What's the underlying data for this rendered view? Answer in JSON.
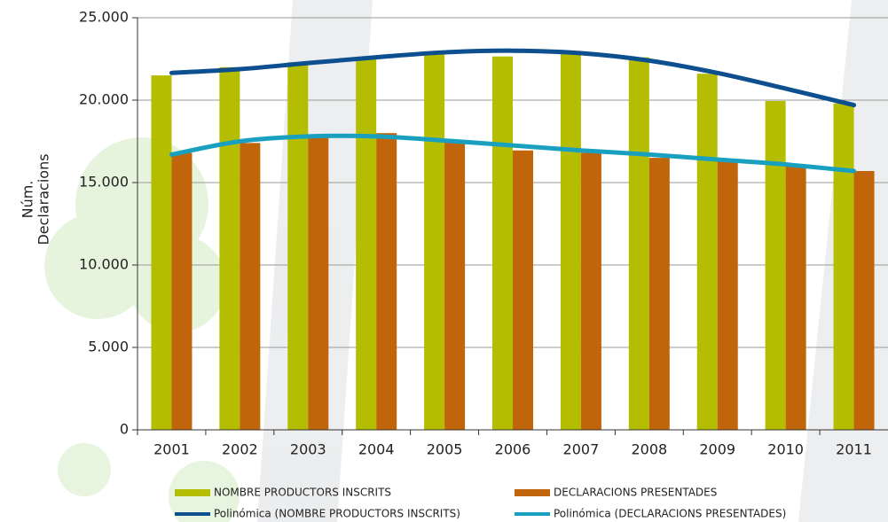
{
  "chart_data": {
    "type": "bar",
    "ylabel": [
      "Núm.",
      "Declaracions"
    ],
    "categories": [
      "2001",
      "2002",
      "2003",
      "2004",
      "2005",
      "2006",
      "2007",
      "2008",
      "2009",
      "2010",
      "2011"
    ],
    "series": [
      {
        "name": "NOMBRE PRODUCTORS INSCRITS",
        "kind": "bar",
        "color": "#b5bd00",
        "values": [
          21500,
          22000,
          22300,
          22600,
          22800,
          22650,
          22900,
          22600,
          21600,
          19950,
          19800
        ]
      },
      {
        "name": "DECLARACIONS PRESENTADES",
        "kind": "bar",
        "color": "#c0650a",
        "values": [
          16800,
          17400,
          17800,
          18000,
          17500,
          16950,
          16800,
          16500,
          16300,
          16000,
          15700
        ]
      },
      {
        "name": "Polinómica (NOMBRE PRODUCTORS INSCRITS)",
        "kind": "line",
        "color": "#0d4f8f",
        "values": [
          21650,
          21880,
          22250,
          22600,
          22900,
          23000,
          22850,
          22400,
          21650,
          20700,
          19700
        ]
      },
      {
        "name": "Polinómica (DECLARACIONS PRESENTADES)",
        "kind": "line",
        "color": "#1aa0bf",
        "values": [
          16700,
          17500,
          17800,
          17800,
          17550,
          17250,
          16950,
          16700,
          16400,
          16100,
          15700
        ]
      }
    ],
    "ylim": [
      0,
      25000
    ],
    "yticks": [
      0,
      {
        "value": 5000,
        "label": "5.000"
      },
      {
        "value": 10000,
        "label": "10.000"
      },
      {
        "value": 15000,
        "label": "15.000"
      },
      {
        "value": 20000,
        "label": "20.000"
      },
      {
        "value": 25000,
        "label": "25.000"
      }
    ],
    "grid": true
  }
}
